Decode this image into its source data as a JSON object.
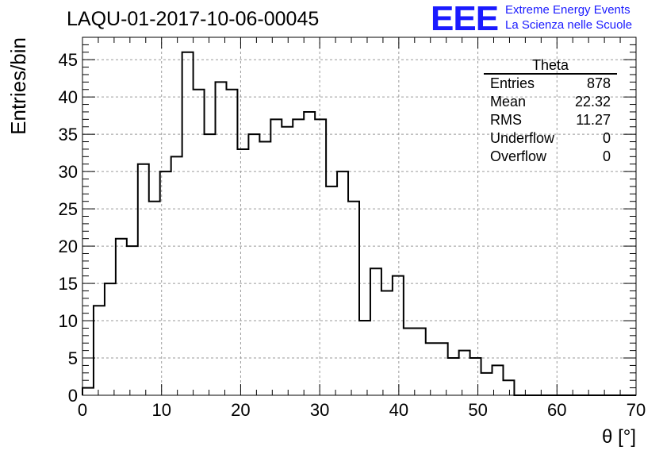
{
  "header": {
    "title": "LAQU-01-2017-10-06-00045",
    "logo": "EEE",
    "logo_line1": "Extreme Energy Events",
    "logo_line2": "La Scienza nelle Scuole"
  },
  "stats_box": {
    "name": "Theta",
    "rows": [
      {
        "label": "Entries",
        "value": "878"
      },
      {
        "label": "Mean",
        "value": "22.32"
      },
      {
        "label": "RMS",
        "value": "11.27"
      },
      {
        "label": "Underflow",
        "value": "0"
      },
      {
        "label": "Overflow",
        "value": "0"
      }
    ]
  },
  "colors": {
    "accent": "#1a1aff",
    "line": "#000000",
    "grid": "#9a9a9a"
  },
  "chart_data": {
    "type": "bar",
    "histogram": true,
    "xlabel": "θ [°]",
    "ylabel": "Entries/bin",
    "xlim": [
      0,
      70
    ],
    "ylim": [
      0,
      48
    ],
    "grid": true,
    "bin_width": 1.4,
    "x_ticks": [
      0,
      10,
      20,
      30,
      40,
      50,
      60,
      70
    ],
    "y_ticks": [
      0,
      5,
      10,
      15,
      20,
      25,
      30,
      35,
      40,
      45
    ],
    "values": [
      1,
      12,
      15,
      21,
      20,
      31,
      26,
      30,
      32,
      46,
      41,
      35,
      42,
      41,
      33,
      35,
      34,
      37,
      36,
      37,
      38,
      37,
      28,
      30,
      26,
      10,
      17,
      14,
      16,
      9,
      9,
      7,
      7,
      5,
      6,
      5,
      3,
      4,
      2,
      0,
      0,
      0,
      0,
      0,
      0,
      0,
      0,
      0,
      0,
      0
    ]
  }
}
